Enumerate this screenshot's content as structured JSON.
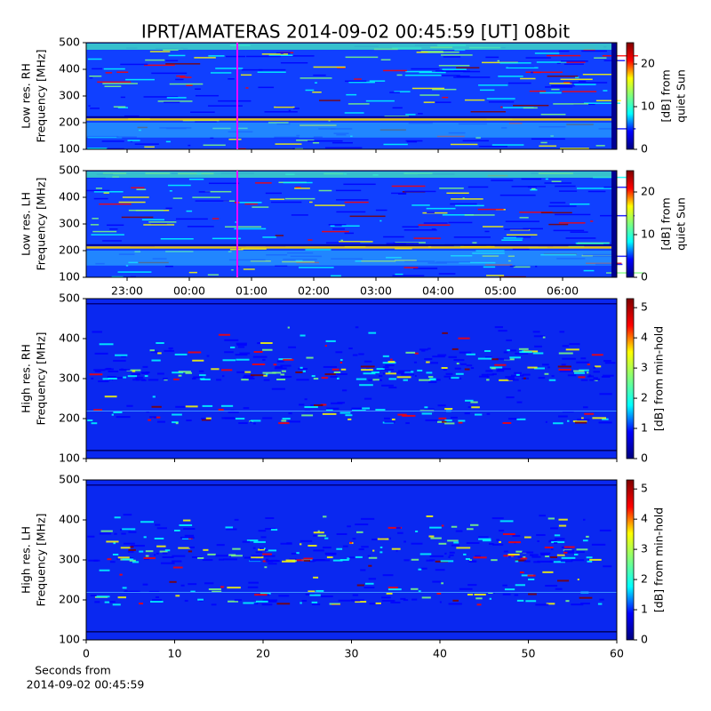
{
  "title": "IPRT/AMATERAS 2014-09-02 00:45:59 [UT]   08bit",
  "chart_data": [
    {
      "type": "heatmap",
      "ylabel": [
        "Low res. RH",
        "Frequency [MHz]"
      ],
      "ylim": [
        100,
        500
      ],
      "yticks": [
        100,
        200,
        300,
        400,
        500
      ],
      "xlim": [
        -1.657,
        6.871
      ],
      "colormap": [
        "#00007f",
        "#0000ff",
        "#00ffff",
        "#7fff7f",
        "#ffff00",
        "#ff0000",
        "#7f0000"
      ],
      "colorbar": {
        "label": [
          "[dB] from",
          "quiet Sun"
        ],
        "lim": [
          0,
          25
        ],
        "ticks": [
          0,
          10,
          20
        ]
      }
    },
    {
      "type": "heatmap",
      "ylabel": [
        "Low res. LH",
        "Frequency [MHz]"
      ],
      "ylim": [
        100,
        500
      ],
      "yticks": [
        100,
        200,
        300,
        400,
        500
      ],
      "xlim": [
        -1.657,
        6.871
      ],
      "xticks": [
        {
          "value": -1,
          "label": "23:00"
        },
        {
          "value": 0,
          "label": "00:00"
        },
        {
          "value": 1,
          "label": "01:00"
        },
        {
          "value": 2,
          "label": "02:00"
        },
        {
          "value": 3,
          "label": "03:00"
        },
        {
          "value": 4,
          "label": "04:00"
        },
        {
          "value": 5,
          "label": "05:00"
        },
        {
          "value": 6,
          "label": "06:00"
        }
      ],
      "colormap": [
        "#00007f",
        "#0000ff",
        "#00ffff",
        "#7fff7f",
        "#ffff00",
        "#ff0000",
        "#7f0000"
      ],
      "colorbar": {
        "label": [
          "[dB] from",
          "quiet Sun"
        ],
        "lim": [
          0,
          25
        ],
        "ticks": [
          0,
          10,
          20
        ]
      }
    },
    {
      "type": "heatmap",
      "ylabel": [
        "High res. RH",
        "Frequency [MHz]"
      ],
      "ylim": [
        100,
        500
      ],
      "yticks": [
        100,
        200,
        300,
        400,
        500
      ],
      "xlim": [
        0,
        60
      ],
      "colormap": [
        "#00007f",
        "#0000ff",
        "#00ffff",
        "#7fff7f",
        "#ffff00",
        "#ff0000",
        "#7f0000"
      ],
      "colorbar": {
        "label": [
          "[dB] from min-hold"
        ],
        "lim": [
          0,
          5.3
        ],
        "ticks": [
          0,
          1,
          2,
          3,
          4,
          5
        ]
      }
    },
    {
      "type": "heatmap",
      "ylabel": [
        "High res. LH",
        "Frequency [MHz]"
      ],
      "ylim": [
        100,
        500
      ],
      "yticks": [
        100,
        200,
        300,
        400,
        500
      ],
      "xlim": [
        0,
        60
      ],
      "xticks": [
        0,
        10,
        20,
        30,
        40,
        50,
        60
      ],
      "xlabel": [
        "Seconds from",
        "2014-09-02 00:45:59"
      ],
      "colormap": [
        "#00007f",
        "#0000ff",
        "#00ffff",
        "#7fff7f",
        "#ffff00",
        "#ff0000",
        "#7f0000"
      ],
      "colorbar": {
        "label": [
          "[dB] from min-hold"
        ],
        "lim": [
          0,
          5.3
        ],
        "ticks": [
          0,
          1,
          2,
          3,
          4,
          5
        ]
      }
    }
  ]
}
